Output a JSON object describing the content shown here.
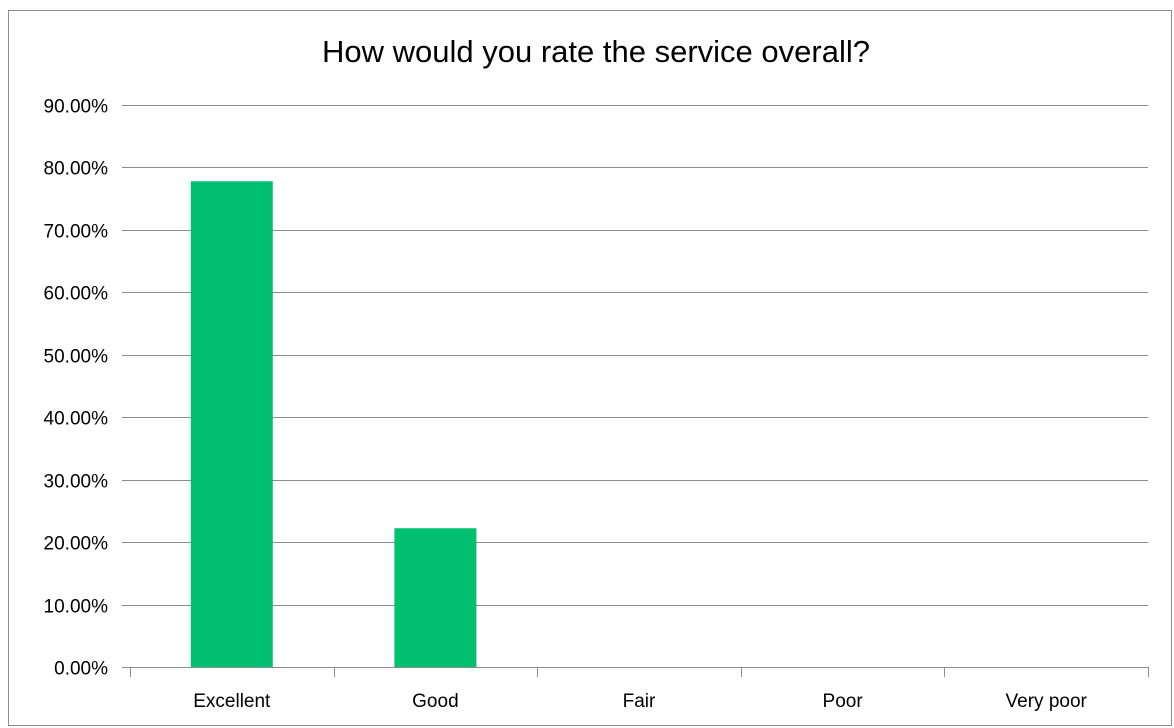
{
  "chart_data": {
    "type": "bar",
    "title": "How would you rate the service overall?",
    "categories": [
      "Excellent",
      "Good",
      "Fair",
      "Poor",
      "Very poor"
    ],
    "values": [
      0.7778,
      0.2222,
      0,
      0,
      0
    ],
    "ylim": [
      0,
      0.9
    ],
    "yticks": [
      0,
      0.1,
      0.2,
      0.3,
      0.4,
      0.5,
      0.6,
      0.7,
      0.8,
      0.9
    ],
    "ytick_labels": [
      "0.00%",
      "10.00%",
      "20.00%",
      "30.00%",
      "40.00%",
      "50.00%",
      "60.00%",
      "70.00%",
      "80.00%",
      "90.00%"
    ],
    "xlabel": "",
    "ylabel": "",
    "grid": true,
    "legend": "none",
    "bar_color": "#00bf6f"
  }
}
